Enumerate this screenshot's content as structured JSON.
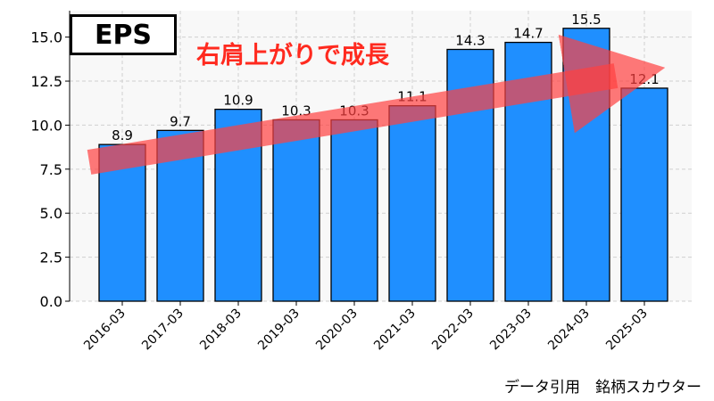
{
  "chart_data": {
    "type": "bar",
    "title": "EPS",
    "annotation": "右肩上がりで成長",
    "categories": [
      "2016-03",
      "2017-03",
      "2018-03",
      "2019-03",
      "2020-03",
      "2021-03",
      "2022-03",
      "2023-03",
      "2024-03",
      "2025-03"
    ],
    "values": [
      8.9,
      9.7,
      10.9,
      10.3,
      10.3,
      11.1,
      14.3,
      14.7,
      15.5,
      12.1
    ],
    "value_labels": [
      "8.9",
      "9.7",
      "10.9",
      "10.3",
      "10.3",
      "11.1",
      "14.3",
      "14.7",
      "15.5",
      "12.1"
    ],
    "ylim": [
      0,
      16.5
    ],
    "yticks": [
      "0.0",
      "2.5",
      "5.0",
      "7.5",
      "10.0",
      "12.5",
      "15.0"
    ],
    "xlabel": "",
    "ylabel": "",
    "grid": true,
    "bar_color": "#1f8fff",
    "arrow_color": "#ff4040"
  },
  "credit": "データ引用　銘柄スカウター"
}
